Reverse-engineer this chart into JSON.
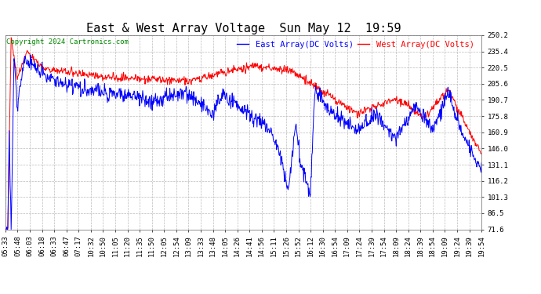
{
  "title": "East & West Array Voltage  Sun May 12  19:59",
  "copyright": "Copyright 2024 Cartronics.com",
  "legend_east": "East Array(DC Volts)",
  "legend_west": "West Array(DC Volts)",
  "east_color": "#0000ff",
  "west_color": "#ff0000",
  "background_color": "#ffffff",
  "grid_color": "#bbbbbb",
  "yticks": [
    71.6,
    86.5,
    101.3,
    116.2,
    131.1,
    146.0,
    160.9,
    175.8,
    190.7,
    205.6,
    220.5,
    235.4,
    250.2
  ],
  "ylim": [
    71.6,
    250.2
  ],
  "xtick_labels": [
    "05:33",
    "05:48",
    "06:03",
    "06:18",
    "06:33",
    "06:47",
    "07:17",
    "10:32",
    "10:50",
    "11:05",
    "11:20",
    "11:35",
    "11:50",
    "12:05",
    "12:54",
    "13:09",
    "13:33",
    "13:48",
    "14:05",
    "14:26",
    "14:41",
    "14:56",
    "15:11",
    "15:26",
    "15:52",
    "16:12",
    "16:30",
    "16:54",
    "17:09",
    "17:24",
    "17:39",
    "17:54",
    "18:09",
    "18:24",
    "18:39",
    "18:54",
    "19:09",
    "19:24",
    "19:39",
    "19:54"
  ],
  "title_fontsize": 11,
  "copyright_fontsize": 6.5,
  "legend_fontsize": 7.5,
  "tick_fontsize": 6.5,
  "line_width": 0.7,
  "figwidth": 6.9,
  "figheight": 3.75,
  "dpi": 100
}
